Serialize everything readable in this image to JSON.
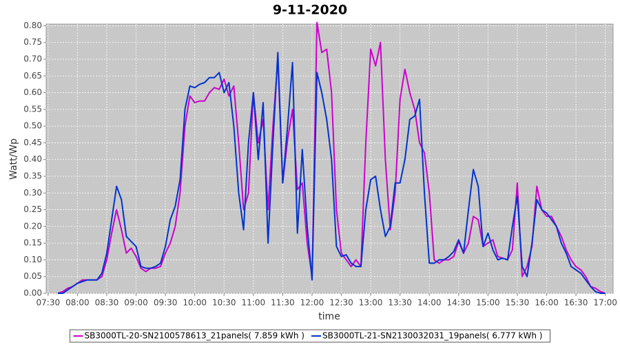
{
  "chart_data": {
    "type": "line",
    "title": "9-11-2020",
    "x_label": "time",
    "y_label": "Watt/Wp",
    "x": [
      "07:40",
      "07:45",
      "07:50",
      "07:55",
      "08:00",
      "08:05",
      "08:10",
      "08:15",
      "08:20",
      "08:25",
      "08:30",
      "08:35",
      "08:40",
      "08:45",
      "08:50",
      "08:55",
      "09:00",
      "09:05",
      "09:10",
      "09:15",
      "09:20",
      "09:25",
      "09:30",
      "09:35",
      "09:40",
      "09:45",
      "09:50",
      "09:55",
      "10:00",
      "10:05",
      "10:10",
      "10:15",
      "10:20",
      "10:25",
      "10:30",
      "10:35",
      "10:40",
      "10:45",
      "10:50",
      "10:55",
      "11:00",
      "11:05",
      "11:10",
      "11:15",
      "11:20",
      "11:25",
      "11:30",
      "11:35",
      "11:40",
      "11:45",
      "11:50",
      "11:55",
      "12:00",
      "12:05",
      "12:10",
      "12:15",
      "12:20",
      "12:25",
      "12:30",
      "12:35",
      "12:40",
      "12:45",
      "12:50",
      "12:55",
      "13:00",
      "13:05",
      "13:10",
      "13:15",
      "13:20",
      "13:25",
      "13:30",
      "13:35",
      "13:40",
      "13:45",
      "13:50",
      "13:55",
      "14:00",
      "14:05",
      "14:10",
      "14:15",
      "14:20",
      "14:25",
      "14:30",
      "14:35",
      "14:40",
      "14:45",
      "14:50",
      "14:55",
      "15:00",
      "15:05",
      "15:10",
      "15:15",
      "15:20",
      "15:25",
      "15:30",
      "15:35",
      "15:40",
      "15:45",
      "15:50",
      "15:55",
      "16:00",
      "16:05",
      "16:10",
      "16:15",
      "16:20",
      "16:25",
      "16:30",
      "16:35",
      "16:40",
      "16:45",
      "16:50",
      "16:55",
      "17:00"
    ],
    "series": [
      {
        "name": "SB3000TL-20-SN2100578613_21panels( 7.859 kWh )",
        "color": "#cc00cc",
        "values": [
          0.0,
          0.005,
          0.015,
          0.02,
          0.03,
          0.04,
          0.04,
          0.04,
          0.04,
          0.05,
          0.1,
          0.18,
          0.25,
          0.19,
          0.12,
          0.135,
          0.11,
          0.075,
          0.065,
          0.075,
          0.075,
          0.08,
          0.12,
          0.15,
          0.2,
          0.3,
          0.5,
          0.59,
          0.57,
          0.575,
          0.575,
          0.6,
          0.615,
          0.61,
          0.64,
          0.59,
          0.62,
          0.45,
          0.25,
          0.3,
          0.6,
          0.45,
          0.52,
          0.25,
          0.5,
          0.7,
          0.33,
          0.46,
          0.55,
          0.31,
          0.33,
          0.15,
          0.05,
          0.81,
          0.72,
          0.73,
          0.6,
          0.25,
          0.12,
          0.1,
          0.08,
          0.1,
          0.08,
          0.45,
          0.73,
          0.68,
          0.75,
          0.4,
          0.19,
          0.3,
          0.58,
          0.67,
          0.6,
          0.55,
          0.45,
          0.42,
          0.3,
          0.1,
          0.09,
          0.1,
          0.1,
          0.11,
          0.155,
          0.12,
          0.15,
          0.23,
          0.22,
          0.14,
          0.15,
          0.16,
          0.11,
          0.105,
          0.1,
          0.13,
          0.33,
          0.05,
          0.08,
          0.14,
          0.32,
          0.25,
          0.23,
          0.23,
          0.2,
          0.17,
          0.13,
          0.1,
          0.08,
          0.07,
          0.05,
          0.02,
          0.015,
          0.005,
          0.0
        ]
      },
      {
        "name": "SB3000TL-21-SN2130032031_19panels( 6.777 kWh )",
        "color": "#0033cc",
        "values": [
          0.0,
          0.0,
          0.01,
          0.02,
          0.03,
          0.035,
          0.04,
          0.04,
          0.04,
          0.06,
          0.12,
          0.22,
          0.32,
          0.28,
          0.17,
          0.155,
          0.14,
          0.08,
          0.075,
          0.075,
          0.08,
          0.09,
          0.14,
          0.22,
          0.26,
          0.34,
          0.55,
          0.62,
          0.615,
          0.625,
          0.63,
          0.645,
          0.645,
          0.66,
          0.6,
          0.63,
          0.5,
          0.3,
          0.19,
          0.45,
          0.6,
          0.4,
          0.57,
          0.15,
          0.45,
          0.72,
          0.33,
          0.5,
          0.69,
          0.18,
          0.43,
          0.2,
          0.04,
          0.66,
          0.6,
          0.52,
          0.4,
          0.14,
          0.11,
          0.115,
          0.09,
          0.08,
          0.08,
          0.25,
          0.34,
          0.35,
          0.25,
          0.17,
          0.2,
          0.33,
          0.33,
          0.4,
          0.52,
          0.53,
          0.58,
          0.3,
          0.09,
          0.09,
          0.1,
          0.1,
          0.11,
          0.125,
          0.16,
          0.12,
          0.25,
          0.37,
          0.32,
          0.14,
          0.18,
          0.13,
          0.1,
          0.105,
          0.1,
          0.2,
          0.29,
          0.08,
          0.05,
          0.15,
          0.28,
          0.25,
          0.24,
          0.22,
          0.2,
          0.15,
          0.12,
          0.08,
          0.07,
          0.06,
          0.04,
          0.02,
          0.005,
          0.0,
          0.0
        ]
      }
    ],
    "xlim": [
      "07:28",
      "17:08"
    ],
    "xticks": [
      "07:30",
      "08:00",
      "08:30",
      "09:00",
      "09:30",
      "10:00",
      "10:30",
      "11:00",
      "11:30",
      "12:00",
      "12:30",
      "13:00",
      "13:30",
      "14:00",
      "14:30",
      "15:00",
      "15:30",
      "16:00",
      "16:30",
      "17:00"
    ],
    "ylim": [
      0,
      0.805
    ],
    "yticks": [
      {
        "value": 0,
        "label": "0.00"
      },
      {
        "value": 0.05,
        "label": "0.05"
      },
      {
        "value": 0.1,
        "label": "0.10"
      },
      {
        "value": 0.15,
        "label": "0.15"
      },
      {
        "value": 0.2,
        "label": "0.20"
      },
      {
        "value": 0.25,
        "label": "0.25"
      },
      {
        "value": 0.3,
        "label": "0.30"
      },
      {
        "value": 0.35,
        "label": "0.35"
      },
      {
        "value": 0.4,
        "label": "0.40"
      },
      {
        "value": 0.45,
        "label": "0.45"
      },
      {
        "value": 0.5,
        "label": "0.50"
      },
      {
        "value": 0.55,
        "label": "0.55"
      },
      {
        "value": 0.6,
        "label": "0.60"
      },
      {
        "value": 0.65,
        "label": "0.65"
      },
      {
        "value": 0.7,
        "label": "0.70"
      },
      {
        "value": 0.75,
        "label": "0.75"
      },
      {
        "value": 0.8,
        "label": "0.80"
      }
    ],
    "grid": true,
    "legend": "bottom"
  }
}
